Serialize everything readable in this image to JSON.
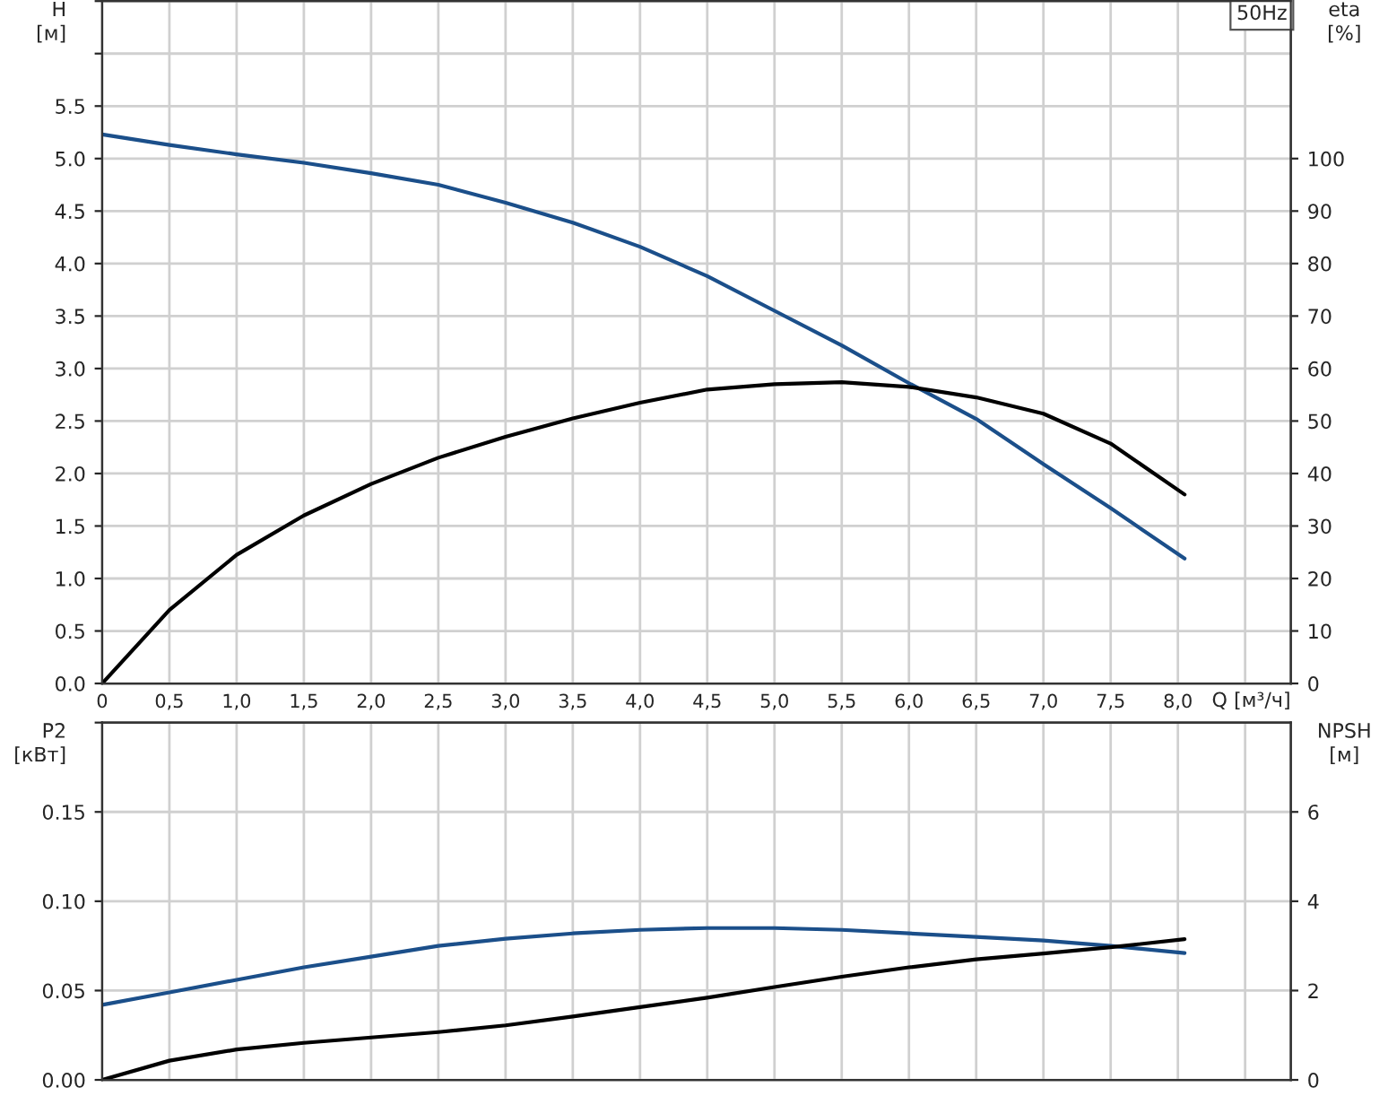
{
  "chart_data": [
    {
      "type": "line",
      "ylabel": "H [м]",
      "y2label": "eta [%]",
      "xlabel": "Q [м³/ч]",
      "annotations": [
        "50Hz"
      ],
      "x": [
        0,
        0.5,
        1.0,
        1.5,
        2.0,
        2.5,
        3.0,
        3.5,
        4.0,
        4.5,
        5.0,
        5.5,
        6.0,
        6.5,
        7.0,
        7.5,
        8.05
      ],
      "series": [
        {
          "color": "#1b4f8a",
          "values": [
            5.23,
            5.13,
            5.04,
            4.96,
            4.86,
            4.75,
            4.58,
            4.39,
            4.16,
            3.88,
            3.55,
            3.22,
            2.86,
            2.52,
            2.09,
            1.67,
            1.19
          ]
        },
        {
          "color": "#000000",
          "axis": "y2",
          "values": [
            0,
            14,
            24.5,
            32,
            38,
            43,
            47,
            50.5,
            53.5,
            56,
            57,
            57.4,
            56.5,
            54.5,
            51.4,
            45.7,
            36
          ]
        }
      ],
      "xlim": [
        0,
        8.84
      ],
      "xticks": [
        {
          "value": 0,
          "label": "0"
        },
        {
          "value": 0.5,
          "label": "0,5"
        },
        {
          "value": 1.0,
          "label": "1,0"
        },
        {
          "value": 1.5,
          "label": "1,5"
        },
        {
          "value": 2.0,
          "label": "2,0"
        },
        {
          "value": 2.5,
          "label": "2,5"
        },
        {
          "value": 3.0,
          "label": "3,0"
        },
        {
          "value": 3.5,
          "label": "3,5"
        },
        {
          "value": 4.0,
          "label": "4,0"
        },
        {
          "value": 4.5,
          "label": "4,5"
        },
        {
          "value": 5.0,
          "label": "5,0"
        },
        {
          "value": 5.5,
          "label": "5,5"
        },
        {
          "value": 6.0,
          "label": "6,0"
        },
        {
          "value": 6.5,
          "label": "6,5"
        },
        {
          "value": 7.0,
          "label": "7,0"
        },
        {
          "value": 7.5,
          "label": "7,5"
        },
        {
          "value": 8.0,
          "label": "8,0"
        },
        {
          "value": 8.5,
          "label": null
        }
      ],
      "ylim": [
        0,
        6.5
      ],
      "yticks": [
        {
          "value": 0,
          "label": "0.0"
        },
        {
          "value": 0.5,
          "label": "0.5"
        },
        {
          "value": 1.0,
          "label": "1.0"
        },
        {
          "value": 1.5,
          "label": "1.5"
        },
        {
          "value": 2.0,
          "label": "2.0"
        },
        {
          "value": 2.5,
          "label": "2.5"
        },
        {
          "value": 3.0,
          "label": "3.0"
        },
        {
          "value": 3.5,
          "label": "3.5"
        },
        {
          "value": 4.0,
          "label": "4.0"
        },
        {
          "value": 4.5,
          "label": "4.5"
        },
        {
          "value": 5.0,
          "label": "5.0"
        },
        {
          "value": 5.5,
          "label": "5.5"
        },
        {
          "value": 6.0,
          "label": null
        },
        {
          "value": 6.5,
          "label": null
        }
      ],
      "y2lim": [
        0,
        130
      ],
      "y2ticks": [
        0,
        10,
        20,
        30,
        40,
        50,
        60,
        70,
        80,
        90,
        100
      ],
      "grid": true,
      "legend": false
    },
    {
      "type": "line",
      "ylabel": "P2 [кВт]",
      "y2label": "NPSH [м]",
      "x": [
        0,
        0.5,
        1.0,
        1.5,
        2.0,
        2.5,
        3.0,
        3.5,
        4.0,
        4.5,
        5.0,
        5.5,
        6.0,
        6.5,
        7.0,
        7.5,
        8.05
      ],
      "series": [
        {
          "color": "#1b4f8a",
          "values": [
            0.042,
            0.049,
            0.056,
            0.063,
            0.069,
            0.075,
            0.079,
            0.082,
            0.084,
            0.085,
            0.085,
            0.084,
            0.082,
            0.08,
            0.078,
            0.075,
            0.071
          ]
        },
        {
          "color": "#000000",
          "axis": "y2",
          "values": [
            0,
            0.43,
            0.68,
            0.83,
            0.95,
            1.07,
            1.22,
            1.42,
            1.63,
            1.84,
            2.08,
            2.31,
            2.52,
            2.7,
            2.83,
            2.97,
            3.15
          ]
        }
      ],
      "xlim": [
        0,
        8.84
      ],
      "xticks": [
        0,
        0.5,
        1.0,
        1.5,
        2.0,
        2.5,
        3.0,
        3.5,
        4.0,
        4.5,
        5.0,
        5.5,
        6.0,
        6.5,
        7.0,
        7.5,
        8.0,
        8.5
      ],
      "ylim": [
        0,
        0.2
      ],
      "yticks": [
        {
          "value": 0,
          "label": "0.00"
        },
        {
          "value": 0.05,
          "label": "0.05"
        },
        {
          "value": 0.1,
          "label": "0.10"
        },
        {
          "value": 0.15,
          "label": "0.15"
        },
        {
          "value": 0.2,
          "label": null
        }
      ],
      "y2lim": [
        0,
        8
      ],
      "y2ticks": [
        0,
        2,
        4,
        6
      ],
      "tick_labels": "y",
      "grid": true,
      "legend": false
    }
  ]
}
